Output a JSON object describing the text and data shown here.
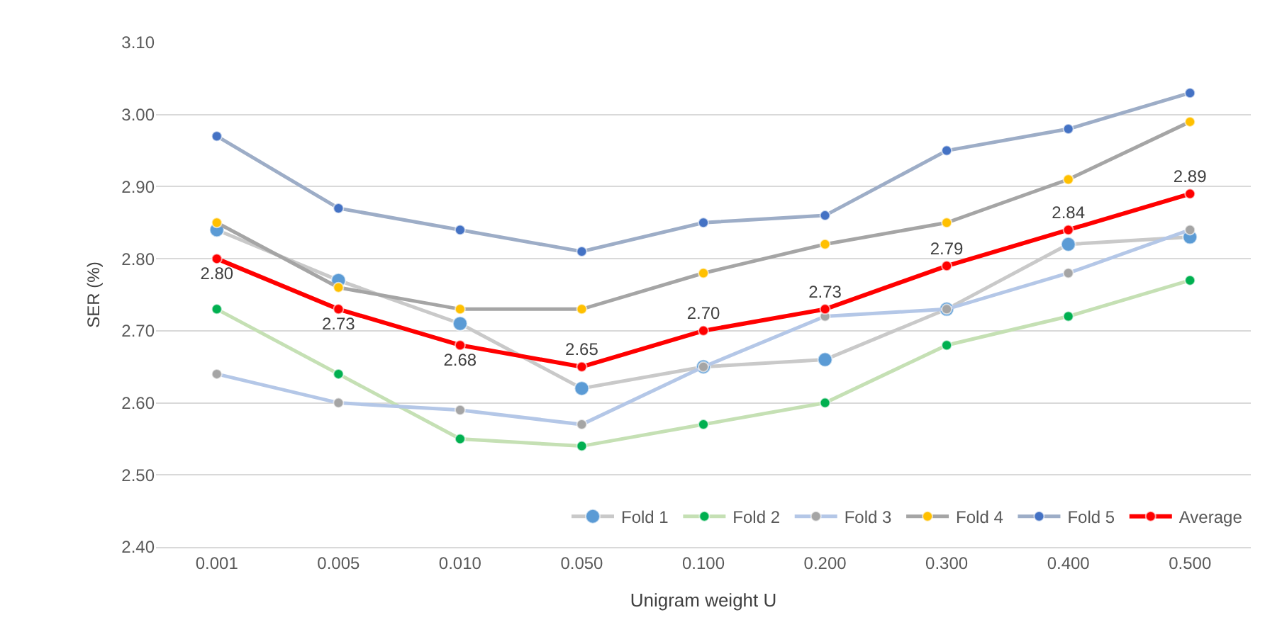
{
  "chart_data": {
    "type": "line",
    "xlabel": "Unigram weight U",
    "ylabel": "SER (%)",
    "categories": [
      "0.001",
      "0.005",
      "0.010",
      "0.050",
      "0.100",
      "0.200",
      "0.300",
      "0.400",
      "0.500"
    ],
    "ylim": [
      2.4,
      3.1
    ],
    "yticks": [
      {
        "value": 2.4,
        "label": "2.40"
      },
      {
        "value": 2.5,
        "label": "2.50"
      },
      {
        "value": 2.6,
        "label": "2.60"
      },
      {
        "value": 2.7,
        "label": "2.70"
      },
      {
        "value": 2.8,
        "label": "2.80"
      },
      {
        "value": 2.9,
        "label": "2.90"
      },
      {
        "value": 3.0,
        "label": "3.00"
      },
      {
        "value": 3.1,
        "label": "3.10"
      }
    ],
    "grid": "y",
    "legend": "bottom right",
    "marker": "circle",
    "line_style": "solid",
    "series": [
      {
        "name": "Fold 1",
        "color": "#c9c9c9",
        "colors": [
          "#5b9bd5",
          "#5b9bd5",
          "#5b9bd5",
          "#5b9bd5",
          "#5b9bd5",
          "#5b9bd5",
          "#5b9bd5",
          "#5b9bd5",
          "#5b9bd5"
        ],
        "values": [
          2.84,
          2.77,
          2.71,
          2.62,
          2.65,
          2.66,
          2.73,
          2.82,
          2.83
        ]
      },
      {
        "name": "Fold 2",
        "color": "#c5e0b4",
        "colors": [
          "#00b050",
          "#00b050",
          "#00b050",
          "#00b050",
          "#00b050",
          "#00b050",
          "#00b050",
          "#00b050",
          "#00b050"
        ],
        "values": [
          2.73,
          2.64,
          2.55,
          2.54,
          2.57,
          2.6,
          2.68,
          2.72,
          2.77
        ]
      },
      {
        "name": "Fold 3",
        "color": "#b4c7e7",
        "colors": [
          "#a5a5a5",
          "#a5a5a5",
          "#a5a5a5",
          "#a5a5a5",
          "#a5a5a5",
          "#a5a5a5",
          "#a5a5a5",
          "#a5a5a5",
          "#a5a5a5"
        ],
        "values": [
          2.64,
          2.6,
          2.59,
          2.57,
          2.65,
          2.72,
          2.73,
          2.78,
          2.84
        ]
      },
      {
        "name": "Fold 4",
        "color": "#a5a5a5",
        "colors": [
          "#ffc000",
          "#ffc000",
          "#ffc000",
          "#ffc000",
          "#ffc000",
          "#ffc000",
          "#ffc000",
          "#ffc000",
          "#ffc000"
        ],
        "values": [
          2.85,
          2.76,
          2.73,
          2.73,
          2.78,
          2.82,
          2.85,
          2.91,
          2.99
        ]
      },
      {
        "name": "Fold 5",
        "color": "#9dadc7",
        "colors": [
          "#4472c4",
          "#4472c4",
          "#4472c4",
          "#4472c4",
          "#4472c4",
          "#4472c4",
          "#4472c4",
          "#4472c4",
          "#4472c4"
        ],
        "values": [
          2.97,
          2.87,
          2.84,
          2.81,
          2.85,
          2.86,
          2.95,
          2.98,
          3.03
        ]
      },
      {
        "name": "Average",
        "color": "#ff0000",
        "colors": [
          "#ff0000",
          "#ff0000",
          "#ff0000",
          "#ff0000",
          "#ff0000",
          "#ff0000",
          "#ff0000",
          "#ff0000",
          "#ff0000"
        ],
        "values": [
          2.8,
          2.73,
          2.68,
          2.65,
          2.7,
          2.73,
          2.79,
          2.84,
          2.89
        ],
        "value_labels": [
          "2.80",
          "2.73",
          "2.68",
          "2.65",
          "2.70",
          "2.73",
          "2.79",
          "2.84",
          "2.89"
        ]
      }
    ]
  }
}
